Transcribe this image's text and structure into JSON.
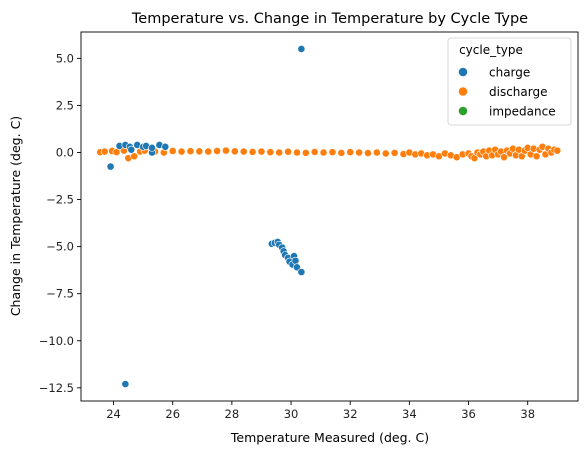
{
  "chart_data": {
    "type": "scatter",
    "title": "Temperature vs. Change in Temperature by Cycle Type",
    "xlabel": "Temperature Measured (deg. C)",
    "ylabel": "Change in Temperature (deg. C)",
    "xlim": [
      22.9,
      39.7
    ],
    "ylim": [
      -13.2,
      6.4
    ],
    "xticks": [
      "24",
      "26",
      "28",
      "30",
      "32",
      "34",
      "36",
      "38"
    ],
    "yticks": [
      "5.0",
      "2.5",
      "0.0",
      "−2.5",
      "−5.0",
      "−7.5",
      "−10.0",
      "−12.5"
    ],
    "grid": false,
    "legend": {
      "title": "cycle_type",
      "placement": "top-right",
      "entries": [
        "charge",
        "discharge",
        "impedance"
      ]
    },
    "series": [
      {
        "name": "charge",
        "color": "#1f77b4",
        "points": [
          [
            30.35,
            5.5
          ],
          [
            23.9,
            -0.75
          ],
          [
            24.4,
            -12.3
          ],
          [
            25.3,
            0.0
          ],
          [
            24.2,
            0.35
          ],
          [
            24.4,
            0.4
          ],
          [
            24.55,
            0.3
          ],
          [
            24.8,
            0.4
          ],
          [
            25.0,
            0.3
          ],
          [
            25.1,
            0.35
          ],
          [
            25.3,
            0.25
          ],
          [
            25.55,
            0.4
          ],
          [
            25.75,
            0.3
          ],
          [
            24.6,
            0.15
          ],
          [
            29.35,
            -4.85
          ],
          [
            29.45,
            -4.8
          ],
          [
            29.55,
            -4.75
          ],
          [
            29.6,
            -4.9
          ],
          [
            29.7,
            -5.05
          ],
          [
            29.75,
            -5.25
          ],
          [
            29.8,
            -5.45
          ],
          [
            29.9,
            -5.6
          ],
          [
            29.95,
            -5.8
          ],
          [
            30.05,
            -5.95
          ],
          [
            30.1,
            -5.5
          ],
          [
            30.15,
            -5.75
          ],
          [
            30.2,
            -6.1
          ],
          [
            30.35,
            -6.35
          ]
        ]
      },
      {
        "name": "discharge",
        "color": "#ff7f0e",
        "points": [
          [
            23.55,
            0.02
          ],
          [
            23.7,
            0.05
          ],
          [
            23.95,
            0.08
          ],
          [
            24.1,
            0.02
          ],
          [
            24.35,
            0.1
          ],
          [
            24.5,
            -0.3
          ],
          [
            24.7,
            -0.2
          ],
          [
            24.9,
            0.05
          ],
          [
            25.05,
            0.1
          ],
          [
            25.4,
            0.05
          ],
          [
            25.7,
            0.0
          ],
          [
            26.0,
            0.08
          ],
          [
            26.3,
            0.05
          ],
          [
            26.6,
            0.07
          ],
          [
            26.9,
            0.06
          ],
          [
            27.2,
            0.05
          ],
          [
            27.5,
            0.08
          ],
          [
            27.8,
            0.1
          ],
          [
            28.1,
            0.06
          ],
          [
            28.4,
            0.05
          ],
          [
            28.7,
            0.03
          ],
          [
            29.0,
            0.05
          ],
          [
            29.3,
            0.02
          ],
          [
            29.6,
            0.0
          ],
          [
            29.9,
            0.04
          ],
          [
            30.2,
            0.0
          ],
          [
            30.5,
            -0.02
          ],
          [
            30.8,
            0.03
          ],
          [
            31.1,
            0.0
          ],
          [
            31.4,
            0.02
          ],
          [
            31.7,
            -0.02
          ],
          [
            32.0,
            0.02
          ],
          [
            32.3,
            0.0
          ],
          [
            32.6,
            -0.03
          ],
          [
            32.9,
            0.0
          ],
          [
            33.2,
            -0.05
          ],
          [
            33.5,
            -0.02
          ],
          [
            33.8,
            -0.08
          ],
          [
            34.0,
            0.0
          ],
          [
            34.2,
            -0.1
          ],
          [
            34.4,
            -0.05
          ],
          [
            34.6,
            -0.15
          ],
          [
            34.8,
            -0.1
          ],
          [
            35.0,
            -0.2
          ],
          [
            35.2,
            -0.05
          ],
          [
            35.4,
            -0.15
          ],
          [
            35.6,
            -0.25
          ],
          [
            35.8,
            -0.1
          ],
          [
            36.0,
            -0.05
          ],
          [
            36.1,
            -0.2
          ],
          [
            36.2,
            -0.3
          ],
          [
            36.3,
            0.0
          ],
          [
            36.4,
            -0.1
          ],
          [
            36.5,
            0.05
          ],
          [
            36.6,
            -0.2
          ],
          [
            36.7,
            0.1
          ],
          [
            36.8,
            -0.15
          ],
          [
            36.9,
            0.15
          ],
          [
            37.0,
            -0.1
          ],
          [
            37.1,
            0.05
          ],
          [
            37.2,
            -0.25
          ],
          [
            37.3,
            0.1
          ],
          [
            37.4,
            -0.05
          ],
          [
            37.5,
            0.2
          ],
          [
            37.6,
            -0.15
          ],
          [
            37.7,
            0.15
          ],
          [
            37.8,
            -0.2
          ],
          [
            37.9,
            0.1
          ],
          [
            38.0,
            0.25
          ],
          [
            38.1,
            -0.1
          ],
          [
            38.2,
            0.2
          ],
          [
            38.3,
            -0.2
          ],
          [
            38.4,
            0.15
          ],
          [
            38.5,
            0.3
          ],
          [
            38.6,
            -0.1
          ],
          [
            38.7,
            0.2
          ],
          [
            38.8,
            0.0
          ],
          [
            38.9,
            0.15
          ],
          [
            39.0,
            0.1
          ]
        ]
      },
      {
        "name": "impedance",
        "color": "#2ca02c",
        "points": []
      }
    ]
  }
}
